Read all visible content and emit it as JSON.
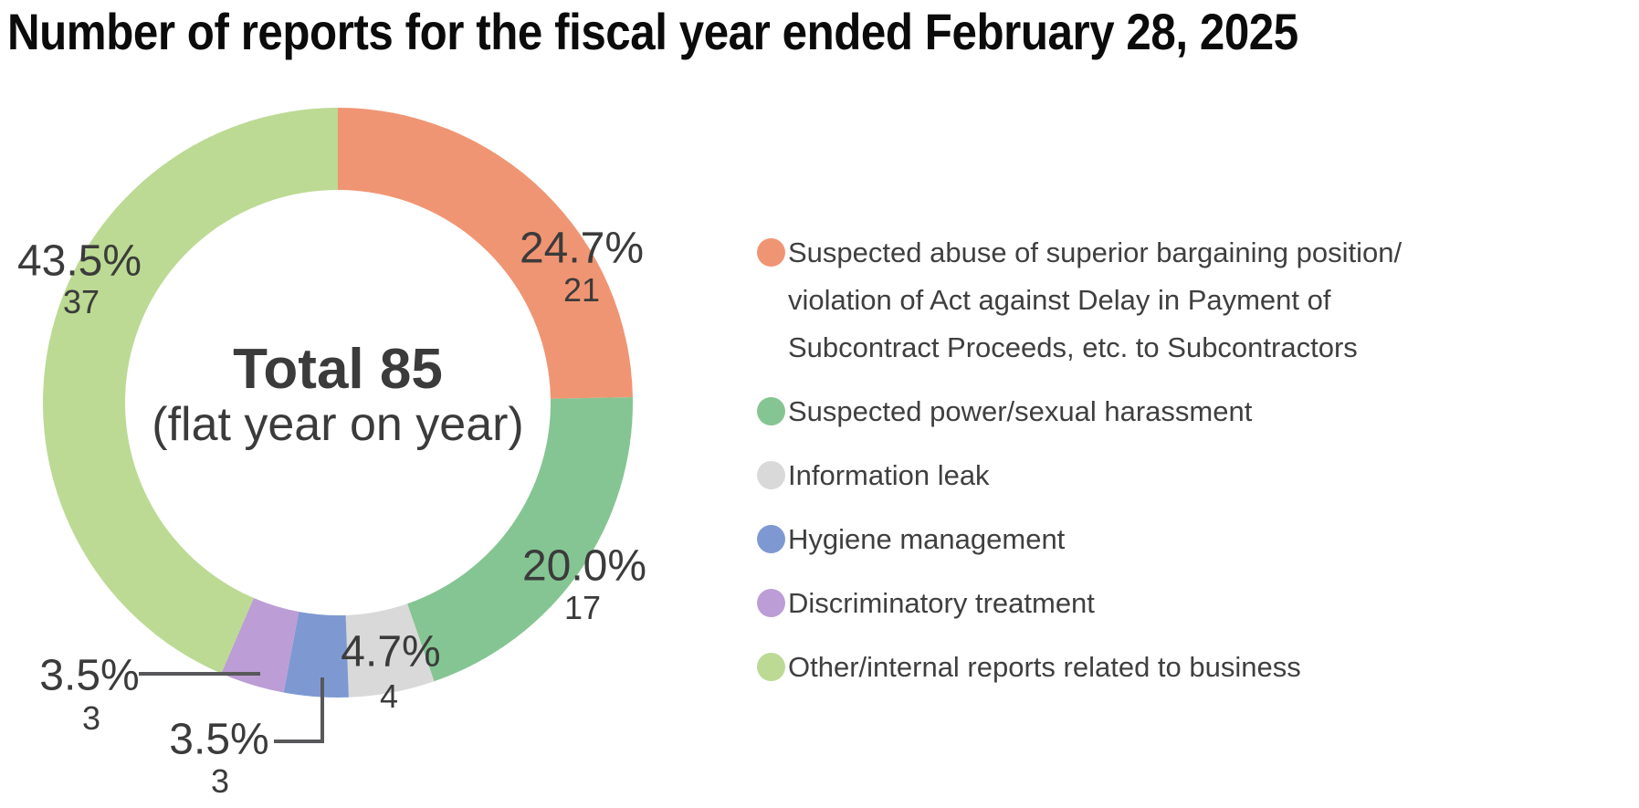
{
  "title": "Number of reports for the fiscal year ended February 28, 2025",
  "chart_data": {
    "type": "pie",
    "subtype": "donut",
    "title": "Number of reports for the fiscal year ended February 28, 2025",
    "center": {
      "main": "Total 85",
      "sub": "(flat year on year)"
    },
    "total": 85,
    "start_angle_deg": 0,
    "direction": "clockwise",
    "legend_position": "right",
    "segments": [
      {
        "label": "Suspected abuse of superior bargaining position/\nviolation of Act against Delay in Payment of\nSubcontract Proceeds, etc. to Subcontractors",
        "value": 21,
        "pct_label": "24.7%",
        "color": "#F09573"
      },
      {
        "label": "Suspected power/sexual harassment",
        "value": 17,
        "pct_label": "20.0%",
        "color": "#85C593"
      },
      {
        "label": "Information leak",
        "value": 4,
        "pct_label": "4.7%",
        "color": "#D9D9D9"
      },
      {
        "label": "Hygiene management",
        "value": 3,
        "pct_label": "3.5%",
        "color": "#7E99D2"
      },
      {
        "label": "Discriminatory treatment",
        "value": 3,
        "pct_label": "3.5%",
        "color": "#BC9DD6"
      },
      {
        "label": "Other/internal reports related to business",
        "value": 37,
        "pct_label": "43.5%",
        "color": "#BCDA93"
      }
    ]
  }
}
